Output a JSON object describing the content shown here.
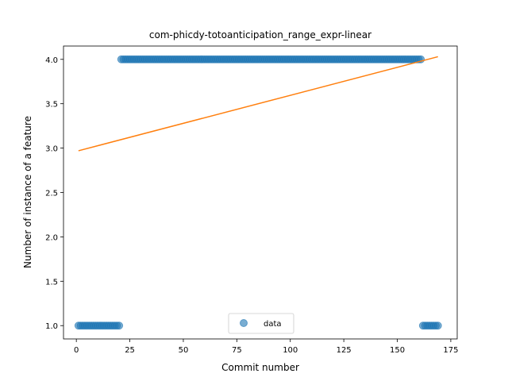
{
  "chart_data": {
    "type": "scatter",
    "title": "com-phicdy-totoanticipation_range_expr-linear",
    "xlabel": "Commit number",
    "ylabel": "Number of instance of a feature",
    "xlim": [
      -6,
      178
    ],
    "ylim": [
      0.85,
      4.15
    ],
    "xticks": [
      0,
      25,
      50,
      75,
      100,
      125,
      150,
      175
    ],
    "yticks": [
      1.0,
      1.5,
      2.0,
      2.5,
      3.0,
      3.5,
      4.0
    ],
    "xtick_labels": [
      "0",
      "25",
      "50",
      "75",
      "100",
      "125",
      "150",
      "175"
    ],
    "ytick_labels": [
      "1.0",
      "1.5",
      "2.0",
      "2.5",
      "3.0",
      "3.5",
      "4.0"
    ],
    "grid": false,
    "legend_position": "bottom-center",
    "colors": {
      "data": "#1f77b4",
      "fit": "#ff7f0e"
    },
    "series": [
      {
        "name": "data",
        "kind": "scatter",
        "segments": [
          {
            "x_start": 1,
            "x_end": 20,
            "y": 1.0
          },
          {
            "x_start": 21,
            "x_end": 161,
            "y": 4.0
          },
          {
            "x_start": 162,
            "x_end": 169,
            "y": 1.0
          }
        ]
      },
      {
        "kind": "line",
        "x": [
          1,
          169
        ],
        "y": [
          2.97,
          4.03
        ]
      }
    ],
    "legend": [
      "data"
    ]
  }
}
